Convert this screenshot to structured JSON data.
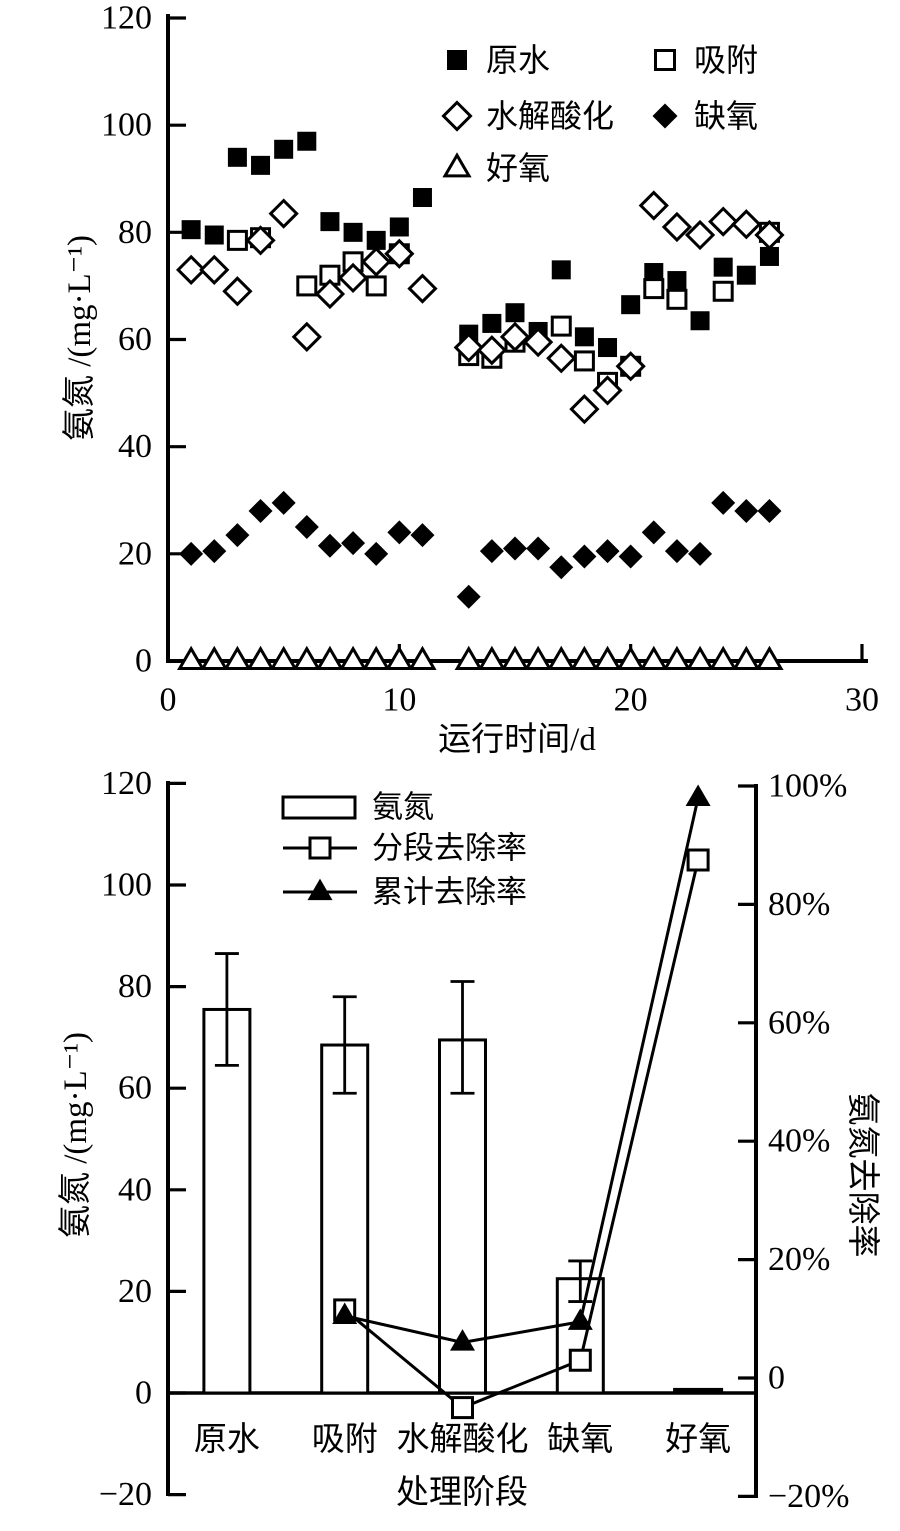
{
  "figure_title": "",
  "colors": {
    "foreground": "#000000",
    "background": "#ffffff"
  },
  "chart_data": [
    {
      "type": "scatter",
      "title": "",
      "xlabel": "运行时间/d",
      "ylabel": "氨氮 /(mg·L⁻¹)",
      "xlim": [
        0,
        30
      ],
      "ylim": [
        0,
        120
      ],
      "xticks": [
        0,
        10,
        20,
        30
      ],
      "yticks": [
        0,
        20,
        40,
        60,
        80,
        100,
        120
      ],
      "grid": false,
      "legend_position": "top-inside-two-columns",
      "series": [
        {
          "name": "原水",
          "key": "raw-water",
          "marker": "square-filled",
          "points": [
            [
              1,
              80.5
            ],
            [
              2,
              79.5
            ],
            [
              3,
              94
            ],
            [
              4,
              92.5
            ],
            [
              5,
              95.5
            ],
            [
              6,
              97
            ],
            [
              7,
              82
            ],
            [
              8,
              80
            ],
            [
              9,
              78.5
            ],
            [
              10,
              81
            ],
            [
              11,
              86.5
            ],
            [
              13,
              61
            ],
            [
              14,
              63
            ],
            [
              15,
              65
            ],
            [
              16,
              61.5
            ],
            [
              17,
              73
            ],
            [
              18,
              60.5
            ],
            [
              19,
              58.5
            ],
            [
              20,
              66.5
            ],
            [
              21,
              72.5
            ],
            [
              22,
              71
            ],
            [
              23,
              63.5
            ],
            [
              24,
              73.5
            ],
            [
              25,
              72
            ],
            [
              26,
              75.5
            ]
          ]
        },
        {
          "name": "吸附",
          "key": "adsorption",
          "marker": "square-open",
          "points": [
            [
              3,
              78.5
            ],
            [
              4,
              79
            ],
            [
              6,
              70
            ],
            [
              7,
              72
            ],
            [
              8,
              74.5
            ],
            [
              9,
              70
            ],
            [
              10,
              76
            ],
            [
              13,
              57
            ],
            [
              14,
              56.5
            ],
            [
              15,
              59.5
            ],
            [
              17,
              62.5
            ],
            [
              18,
              56
            ],
            [
              19,
              52
            ],
            [
              20,
              55
            ],
            [
              21,
              69.5
            ],
            [
              22,
              67.5
            ],
            [
              24,
              69
            ],
            [
              26,
              80
            ]
          ]
        },
        {
          "name": "水解酸化",
          "key": "hydrolysis-acidification",
          "marker": "diamond-open",
          "points": [
            [
              1,
              73
            ],
            [
              2,
              73
            ],
            [
              3,
              69
            ],
            [
              4,
              78.5
            ],
            [
              5,
              83.5
            ],
            [
              6,
              60.5
            ],
            [
              7,
              68.5
            ],
            [
              8,
              71.5
            ],
            [
              9,
              74.5
            ],
            [
              10,
              76
            ],
            [
              11,
              69.5
            ],
            [
              13,
              58.5
            ],
            [
              14,
              58
            ],
            [
              15,
              60.5
            ],
            [
              16,
              59.5
            ],
            [
              17,
              56.5
            ],
            [
              18,
              47
            ],
            [
              19,
              50.5
            ],
            [
              20,
              55
            ],
            [
              21,
              85
            ],
            [
              22,
              81
            ],
            [
              23,
              79.5
            ],
            [
              24,
              82
            ],
            [
              25,
              81.5
            ],
            [
              26,
              79.5
            ]
          ]
        },
        {
          "name": "缺氧",
          "key": "anoxic",
          "marker": "diamond-filled",
          "points": [
            [
              1,
              20
            ],
            [
              2,
              20.5
            ],
            [
              3,
              23.5
            ],
            [
              4,
              28
            ],
            [
              5,
              29.5
            ],
            [
              6,
              25
            ],
            [
              7,
              21.5
            ],
            [
              8,
              22
            ],
            [
              9,
              20
            ],
            [
              10,
              24
            ],
            [
              11,
              23.5
            ],
            [
              13,
              12
            ],
            [
              14,
              20.5
            ],
            [
              15,
              21
            ],
            [
              16,
              21
            ],
            [
              17,
              17.5
            ],
            [
              18,
              19.5
            ],
            [
              19,
              20.5
            ],
            [
              20,
              19.5
            ],
            [
              21,
              24
            ],
            [
              22,
              20.5
            ],
            [
              23,
              20
            ],
            [
              24,
              29.5
            ],
            [
              25,
              28
            ],
            [
              26,
              28
            ]
          ]
        },
        {
          "name": "好氧",
          "key": "aerobic",
          "marker": "triangle-open",
          "points": [
            [
              1,
              0
            ],
            [
              2,
              0
            ],
            [
              3,
              0
            ],
            [
              4,
              0
            ],
            [
              5,
              0
            ],
            [
              6,
              0
            ],
            [
              7,
              0
            ],
            [
              8,
              0
            ],
            [
              9,
              0
            ],
            [
              10,
              0
            ],
            [
              11,
              0
            ],
            [
              13,
              0
            ],
            [
              14,
              0
            ],
            [
              15,
              0
            ],
            [
              16,
              0
            ],
            [
              17,
              0
            ],
            [
              18,
              0
            ],
            [
              19,
              0
            ],
            [
              20,
              0
            ],
            [
              21,
              0
            ],
            [
              22,
              0
            ],
            [
              23,
              0
            ],
            [
              24,
              0
            ],
            [
              25,
              0
            ],
            [
              26,
              0
            ]
          ]
        }
      ]
    },
    {
      "type": "bar+line",
      "title": "",
      "xlabel": "处理阶段",
      "ylabel_left": "氨氮 /(mg·L⁻¹)",
      "ylabel_right": "氨氮去除率",
      "categories": [
        "原水",
        "吸附",
        "水解酸化",
        "缺氧",
        "好氧"
      ],
      "ylim_left": [
        -20,
        120
      ],
      "ylim_right_percent": [
        -20,
        100
      ],
      "yticks_left": [
        {
          "v": 120,
          "label": "120"
        },
        {
          "v": 100,
          "label": "100"
        },
        {
          "v": 80,
          "label": "80"
        },
        {
          "v": 60,
          "label": "60"
        },
        {
          "v": 40,
          "label": "40"
        },
        {
          "v": 20,
          "label": "20"
        },
        {
          "v": 0,
          "label": "0"
        },
        {
          "v": -20,
          "label": "−20"
        }
      ],
      "yticks_right": [
        {
          "v": 100,
          "label": "100%"
        },
        {
          "v": 80,
          "label": "80%"
        },
        {
          "v": 60,
          "label": "60%"
        },
        {
          "v": 40,
          "label": "40%"
        },
        {
          "v": 20,
          "label": "20%"
        },
        {
          "v": 0,
          "label": "0"
        },
        {
          "v": -20,
          "label": "−20%"
        }
      ],
      "bar_series": {
        "name": "氨氮",
        "key": "ammonia-nitrogen",
        "values": [
          75.5,
          68.5,
          69.5,
          22.5,
          1
        ],
        "errors": [
          [
            64.5,
            86.5
          ],
          [
            59,
            78
          ],
          [
            59,
            81
          ],
          [
            18,
            26
          ],
          null
        ]
      },
      "line_series": [
        {
          "name": "分段去除率",
          "key": "stage-removal-rate",
          "marker": "square-open",
          "values_percent": [
            null,
            11.5,
            -5,
            3,
            87.5
          ]
        },
        {
          "name": "累计去除率",
          "key": "cumulative-removal-rate",
          "marker": "triangle-filled",
          "values_percent": [
            null,
            10.5,
            6,
            9.5,
            98
          ]
        }
      ]
    }
  ]
}
